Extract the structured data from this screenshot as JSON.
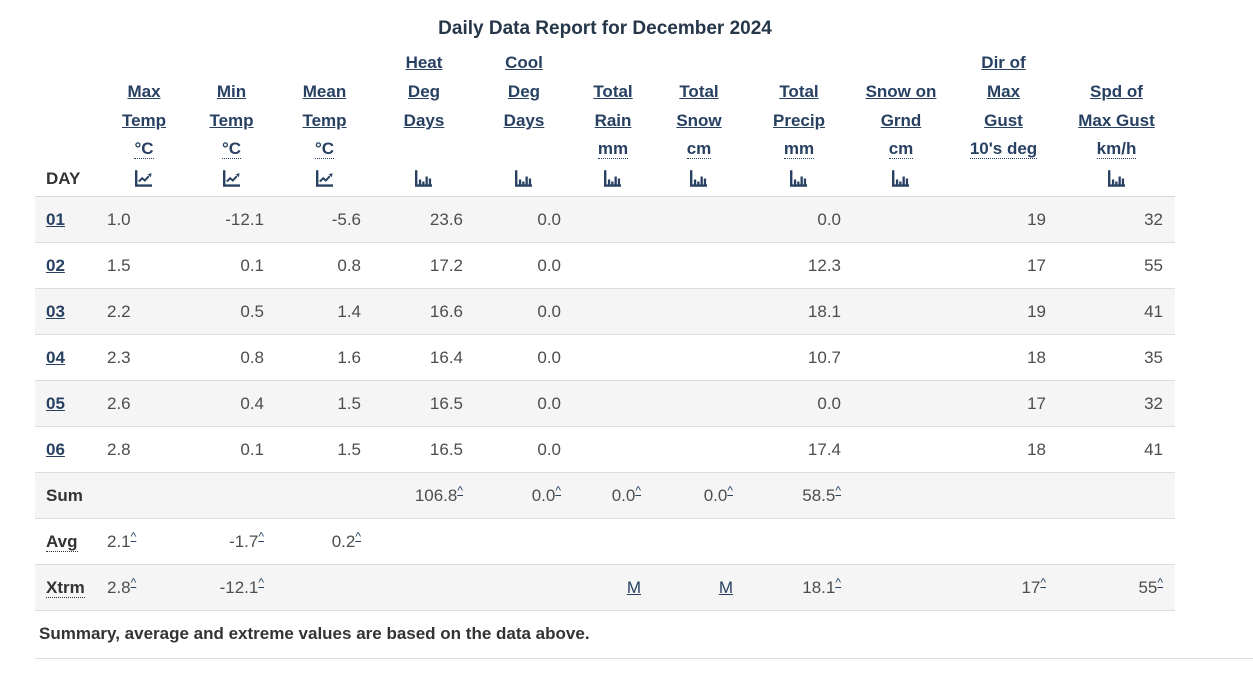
{
  "title": "Daily Data Report for December 2024",
  "footnote": "Summary, average and extreme values are based on the data above.",
  "colors": {
    "link": "#284162",
    "heading": "#26374a",
    "body_text": "#4d4d4d",
    "label_text": "#333333",
    "row_alt_background": "#f5f5f5",
    "border": "#dddddd"
  },
  "columns": [
    {
      "key": "day",
      "label": "DAY",
      "unit": "",
      "icon": "none",
      "align": "left"
    },
    {
      "key": "max_temp",
      "label_lines": [
        "Max",
        "Temp"
      ],
      "unit": "°C",
      "icon": "line-chart",
      "align": "left"
    },
    {
      "key": "min_temp",
      "label_lines": [
        "Min",
        "Temp"
      ],
      "unit": "°C",
      "icon": "line-chart",
      "align": "right"
    },
    {
      "key": "mean_temp",
      "label_lines": [
        "Mean",
        "Temp"
      ],
      "unit": "°C",
      "icon": "line-chart",
      "align": "right"
    },
    {
      "key": "heat_deg_days",
      "label_lines": [
        "Heat",
        "Deg",
        "Days"
      ],
      "unit": "",
      "icon": "bar-chart",
      "align": "right"
    },
    {
      "key": "cool_deg_days",
      "label_lines": [
        "Cool",
        "Deg",
        "Days"
      ],
      "unit": "",
      "icon": "bar-chart",
      "align": "right"
    },
    {
      "key": "total_rain",
      "label_lines": [
        "Total",
        "Rain"
      ],
      "unit": "mm",
      "icon": "bar-chart",
      "align": "right"
    },
    {
      "key": "total_snow",
      "label_lines": [
        "Total",
        "Snow"
      ],
      "unit": "cm",
      "icon": "bar-chart",
      "align": "right"
    },
    {
      "key": "total_precip",
      "label_lines": [
        "Total",
        "Precip"
      ],
      "unit": "mm",
      "icon": "bar-chart",
      "align": "right"
    },
    {
      "key": "snow_on_grnd",
      "label_lines": [
        "Snow on",
        "Grnd"
      ],
      "unit": "cm",
      "icon": "bar-chart",
      "align": "right"
    },
    {
      "key": "dir_of_max_gust",
      "label_lines": [
        "Dir of",
        "Max",
        "Gust"
      ],
      "unit": "10's deg",
      "icon": "none",
      "align": "right"
    },
    {
      "key": "spd_of_max_gust",
      "label_lines": [
        "Spd of",
        "Max Gust"
      ],
      "unit": "km/h",
      "icon": "bar-chart",
      "align": "right"
    }
  ],
  "rows": [
    {
      "day": "01",
      "cells": [
        "1.0",
        "-12.1",
        "-5.6",
        "23.6",
        "0.0",
        "",
        "",
        "0.0",
        "",
        "19",
        "32"
      ]
    },
    {
      "day": "02",
      "cells": [
        "1.5",
        "0.1",
        "0.8",
        "17.2",
        "0.0",
        "",
        "",
        "12.3",
        "",
        "17",
        "55"
      ]
    },
    {
      "day": "03",
      "cells": [
        "2.2",
        "0.5",
        "1.4",
        "16.6",
        "0.0",
        "",
        "",
        "18.1",
        "",
        "19",
        "41"
      ]
    },
    {
      "day": "04",
      "cells": [
        "2.3",
        "0.8",
        "1.6",
        "16.4",
        "0.0",
        "",
        "",
        "10.7",
        "",
        "18",
        "35"
      ]
    },
    {
      "day": "05",
      "cells": [
        "2.6",
        "0.4",
        "1.5",
        "16.5",
        "0.0",
        "",
        "",
        "0.0",
        "",
        "17",
        "32"
      ]
    },
    {
      "day": "06",
      "cells": [
        "2.8",
        "0.1",
        "1.5",
        "16.5",
        "0.0",
        "",
        "",
        "17.4",
        "",
        "18",
        "41"
      ]
    }
  ],
  "summary_rows": [
    {
      "label": "Sum",
      "abbr": false,
      "cells": [
        "",
        "",
        "",
        "106.8^",
        "0.0^",
        "0.0^",
        "0.0^",
        "58.5^",
        "",
        "",
        ""
      ]
    },
    {
      "label": "Avg",
      "abbr": true,
      "cells": [
        "2.1^",
        "-1.7^",
        "0.2^",
        "",
        "",
        "",
        "",
        "",
        "",
        "",
        ""
      ]
    },
    {
      "label": "Xtrm",
      "abbr": true,
      "cells": [
        "2.8^",
        "-12.1^",
        "",
        "",
        "",
        "M",
        "M",
        "18.1^",
        "",
        "17^",
        "55^"
      ]
    }
  ]
}
